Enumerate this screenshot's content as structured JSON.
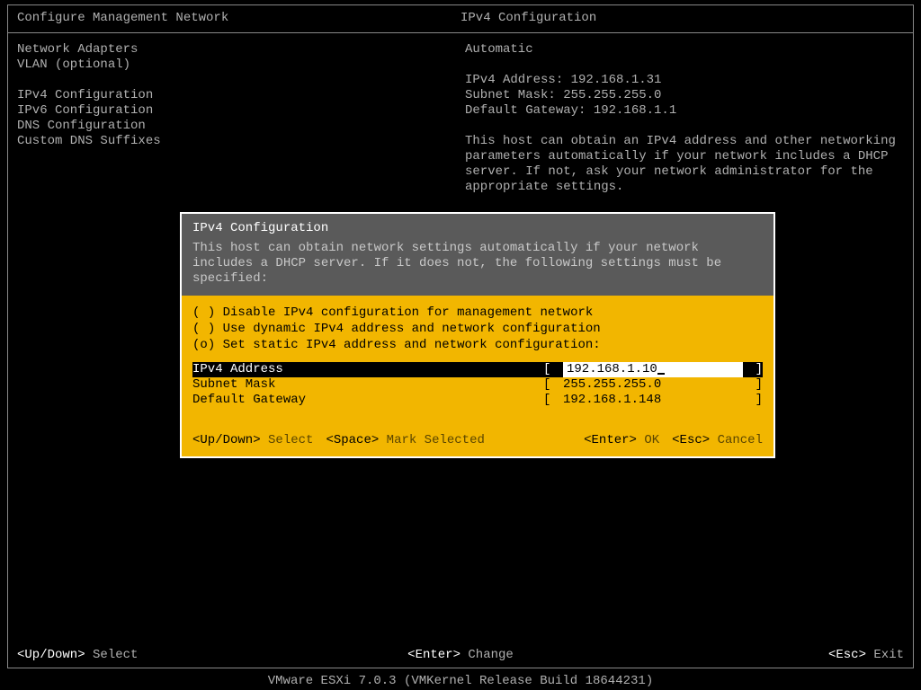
{
  "colors": {
    "background": "#000000",
    "text_dim": "#b0b0b0",
    "text_bright": "#ffffff",
    "border": "#888888",
    "dialog_bg": "#f2b600",
    "dialog_header_bg": "#5a5a5a",
    "dialog_header_text": "#ffffff",
    "dialog_desc_text": "#c8c8c8",
    "dialog_body_text": "#000000",
    "selected_row_bg": "#000000",
    "selected_value_bg": "#ffffff",
    "dialog_action_text": "#5a4500"
  },
  "typography": {
    "font_family": "Courier New, monospace",
    "font_size": 14,
    "line_height": 17
  },
  "header": {
    "left_title": "Configure Management Network",
    "right_title": "IPv4 Configuration"
  },
  "menu": {
    "groups": [
      [
        "Network Adapters",
        "VLAN (optional)"
      ],
      [
        "IPv4 Configuration",
        "IPv6 Configuration",
        "DNS Configuration",
        "Custom DNS Suffixes"
      ]
    ]
  },
  "detail": {
    "mode": "Automatic",
    "lines": [
      "IPv4 Address: 192.168.1.31",
      "Subnet Mask: 255.255.255.0",
      "Default Gateway: 192.168.1.1"
    ],
    "description": [
      "This host can obtain an IPv4 address and other networking",
      "parameters automatically if your network includes a DHCP",
      "server. If not, ask your network administrator for the",
      "appropriate settings."
    ]
  },
  "dialog": {
    "title": "IPv4 Configuration",
    "description": [
      "This host can obtain network settings automatically if your network",
      "includes a DHCP server. If it does not, the following settings must be",
      "specified:"
    ],
    "options": [
      {
        "mark": " ",
        "label": "Disable IPv4 configuration for management network"
      },
      {
        "mark": " ",
        "label": "Use dynamic IPv4 address and network configuration"
      },
      {
        "mark": "o",
        "label": "Set static IPv4 address and network configuration:"
      }
    ],
    "fields": [
      {
        "label": "IPv4 Address",
        "value": "192.168.1.10",
        "selected": true
      },
      {
        "label": "Subnet Mask",
        "value": "255.255.255.0",
        "selected": false
      },
      {
        "label": "Default Gateway",
        "value": "192.168.1.148",
        "selected": false
      }
    ],
    "footer": {
      "updown_key": "<Up/Down>",
      "updown_action": "Select",
      "space_key": "<Space>",
      "space_action": "Mark Selected",
      "enter_key": "<Enter>",
      "enter_action": "OK",
      "esc_key": "<Esc>",
      "esc_action": "Cancel"
    }
  },
  "main_footer": {
    "updown_key": "<Up/Down>",
    "updown_action": "Select",
    "enter_key": "<Enter>",
    "enter_action": "Change",
    "esc_key": "<Esc>",
    "esc_action": "Exit"
  },
  "status_bar": "VMware ESXi 7.0.3 (VMKernel Release Build 18644231)"
}
